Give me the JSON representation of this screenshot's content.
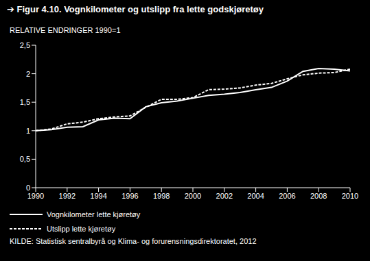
{
  "chart_data": {
    "type": "line",
    "title": "➔ Figur 4.10. Vognkilometer og utslipp fra lette godskjøretøy",
    "subtitle": "RELATIVE ENDRINGER 1990=1",
    "source": "KILDE: Statistisk sentralbyrå og Klima- og forurensningsdirektoratet, 2012",
    "x": [
      1990,
      1991,
      1992,
      1993,
      1994,
      1995,
      1996,
      1997,
      1998,
      1999,
      2000,
      2001,
      2002,
      2003,
      2004,
      2005,
      2006,
      2007,
      2008,
      2009,
      2010
    ],
    "series": [
      {
        "name": "Vognkilometer lette kjøretøy",
        "color": "#ffffff",
        "line_style": "solid",
        "values": [
          1.0,
          1.02,
          1.06,
          1.07,
          1.19,
          1.22,
          1.21,
          1.42,
          1.49,
          1.52,
          1.57,
          1.62,
          1.64,
          1.67,
          1.72,
          1.76,
          1.87,
          2.04,
          2.09,
          2.08,
          2.05
        ]
      },
      {
        "name": "Utslipp lette kjøretøy",
        "color": "#ffffff",
        "line_style": "dashed",
        "values": [
          1.0,
          1.03,
          1.12,
          1.15,
          1.21,
          1.24,
          1.26,
          1.41,
          1.55,
          1.55,
          1.58,
          1.72,
          1.73,
          1.75,
          1.8,
          1.83,
          1.91,
          1.98,
          2.01,
          2.02,
          2.08
        ]
      }
    ],
    "xlim": [
      1990,
      2010
    ],
    "xticks": [
      1990,
      1992,
      1994,
      1996,
      1998,
      2000,
      2002,
      2004,
      2006,
      2008,
      2010
    ],
    "ylim": [
      0,
      2.5
    ],
    "yticks": [
      0,
      {
        "value": 0.5,
        "label": "0,5"
      },
      1,
      {
        "value": 1.5,
        "label": "1,5"
      },
      2,
      {
        "value": 2.5,
        "label": "2,5"
      }
    ],
    "grid": false,
    "legend": "bottom"
  }
}
